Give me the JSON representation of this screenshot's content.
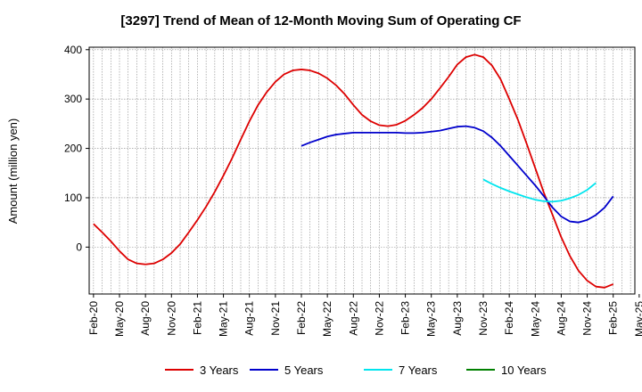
{
  "chart_data": {
    "type": "line",
    "title": "[3297]  Trend of Mean of 12-Month Moving Sum of Operating CF",
    "xlabel": "",
    "ylabel": "Amount (million yen)",
    "ylim": [
      -95,
      405
    ],
    "yticks": [
      0,
      100,
      200,
      300,
      400
    ],
    "x_tick_labels": [
      "Feb-20",
      "May-20",
      "Aug-20",
      "Nov-20",
      "Feb-21",
      "May-21",
      "Aug-21",
      "Nov-21",
      "Feb-22",
      "May-22",
      "Aug-22",
      "Nov-22",
      "Feb-23",
      "May-23",
      "Aug-23",
      "Nov-23",
      "Feb-24",
      "May-24",
      "Aug-24",
      "Nov-24",
      "Feb-25",
      "May-25"
    ],
    "x_months_total": 63,
    "grid": true,
    "legend_position": "bottom",
    "series": [
      {
        "name": "3 Years",
        "color": "#dd0000",
        "start_month": 0,
        "values": [
          47,
          30,
          12,
          -8,
          -25,
          -33,
          -35,
          -33,
          -25,
          -12,
          6,
          30,
          55,
          82,
          112,
          145,
          180,
          218,
          255,
          288,
          314,
          335,
          350,
          358,
          360,
          358,
          352,
          342,
          328,
          310,
          288,
          268,
          255,
          247,
          245,
          248,
          256,
          268,
          282,
          300,
          322,
          345,
          370,
          385,
          390,
          385,
          368,
          340,
          300,
          258,
          210,
          160,
          110,
          65,
          20,
          -18,
          -48,
          -68,
          -80,
          -82,
          -75
        ]
      },
      {
        "name": "5 Years",
        "color": "#0000cc",
        "start_month": 24,
        "values": [
          205,
          212,
          218,
          224,
          228,
          230,
          232,
          232,
          232,
          232,
          232,
          232,
          231,
          231,
          232,
          234,
          236,
          240,
          244,
          245,
          242,
          235,
          222,
          205,
          185,
          165,
          145,
          125,
          103,
          80,
          62,
          52,
          50,
          55,
          65,
          80,
          103
        ]
      },
      {
        "name": "7 Years",
        "color": "#00e5ee",
        "start_month": 45,
        "values": [
          137,
          128,
          120,
          113,
          107,
          101,
          96,
          93,
          92,
          94,
          99,
          106,
          116,
          130
        ]
      },
      {
        "name": "10 Years",
        "color": "#008000",
        "start_month": 0,
        "values": []
      }
    ]
  }
}
